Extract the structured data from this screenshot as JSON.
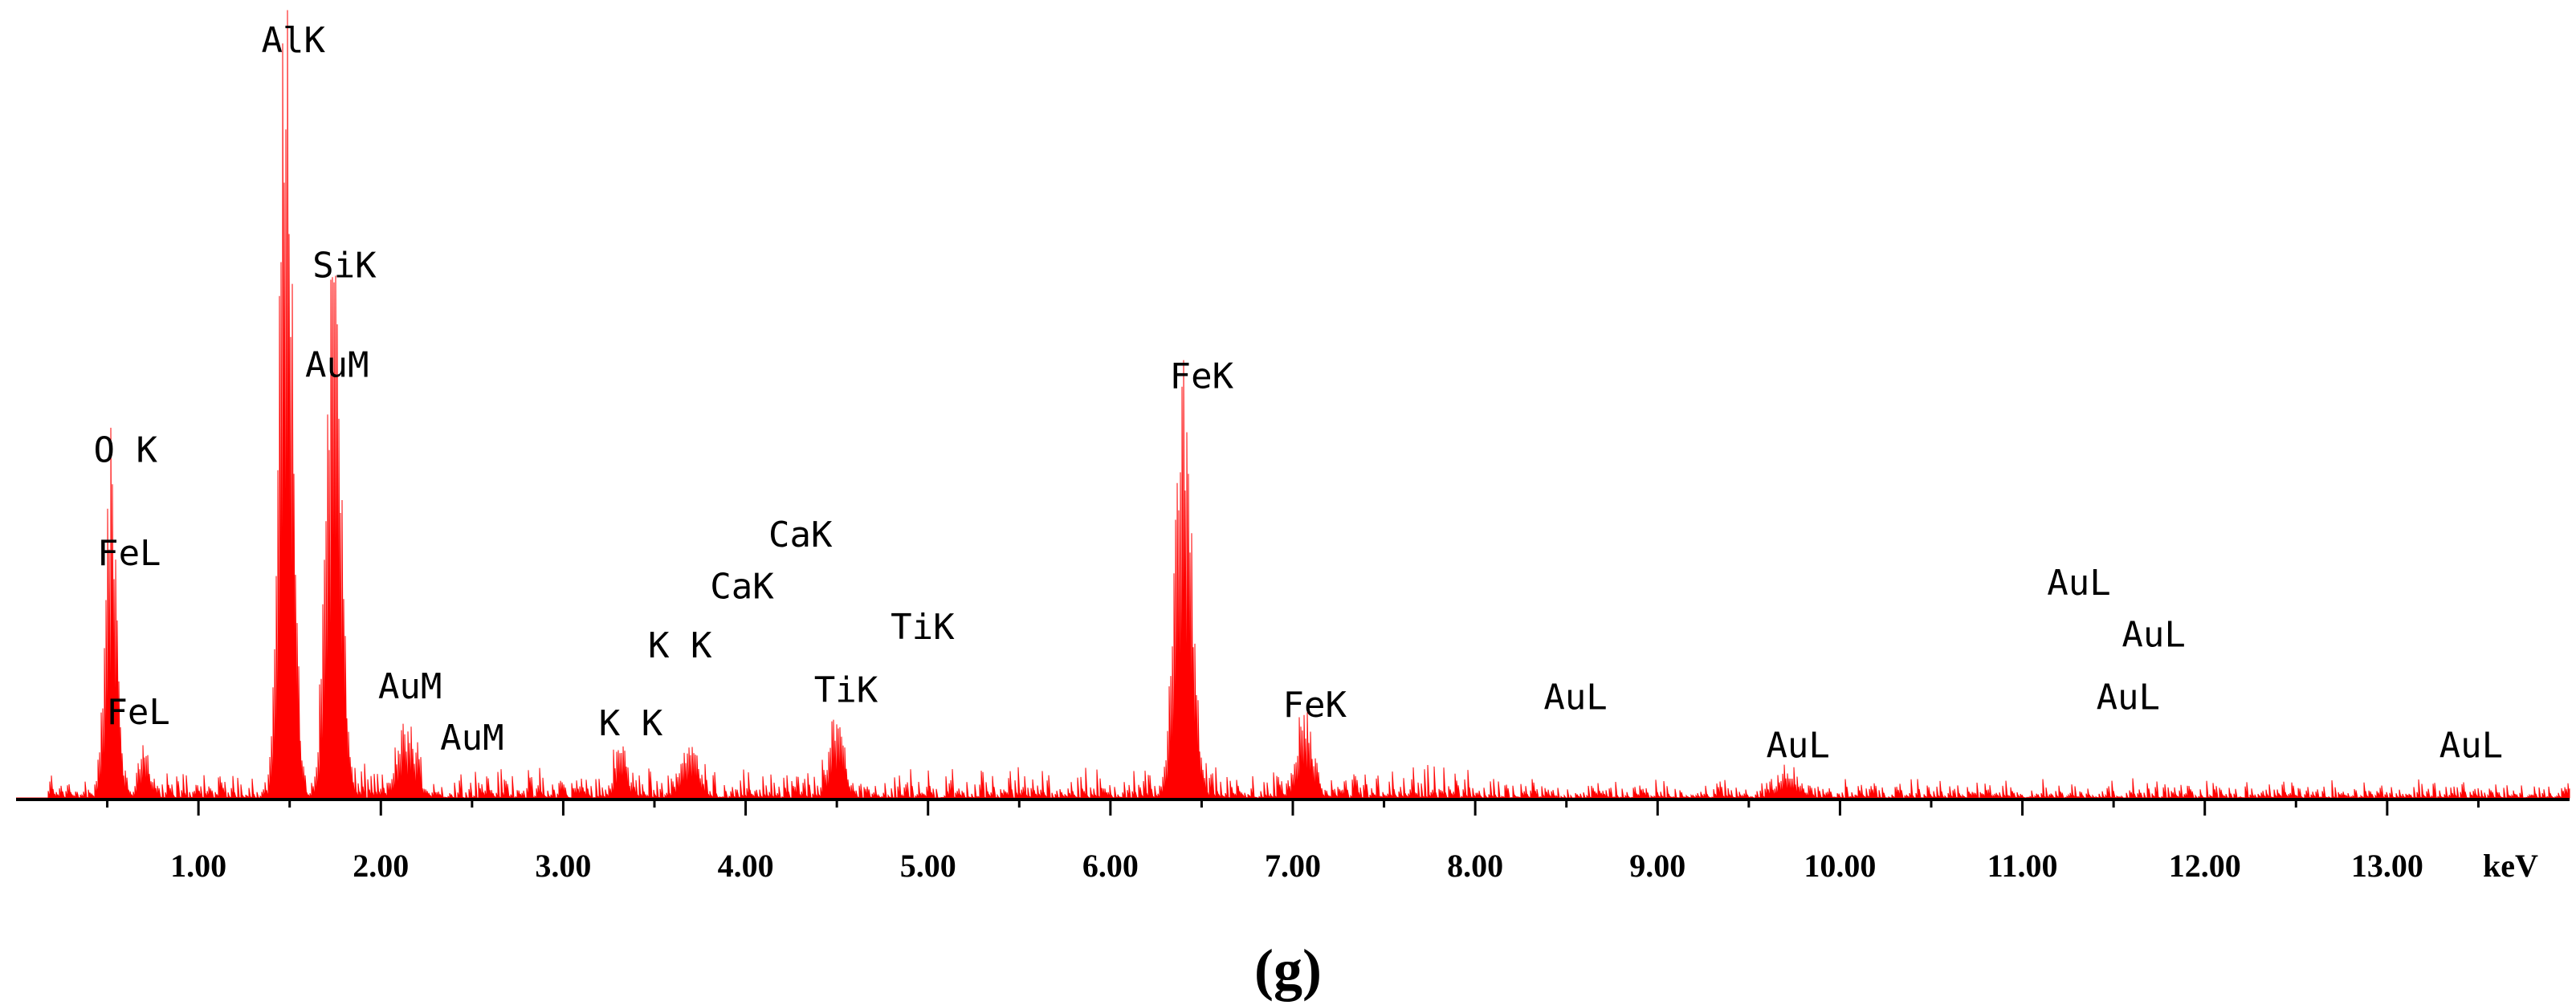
{
  "chart_data": {
    "type": "area",
    "xlabel": "keV",
    "caption": "(g)",
    "xlim": [
      0,
      14.0
    ],
    "ylim": [
      0,
      1.0
    ],
    "grid": false,
    "series_color": "#ff0000",
    "ticks": [
      {
        "value": 1.0,
        "label": "1.00"
      },
      {
        "value": 2.0,
        "label": "2.00"
      },
      {
        "value": 3.0,
        "label": "3.00"
      },
      {
        "value": 4.0,
        "label": "4.00"
      },
      {
        "value": 5.0,
        "label": "5.00"
      },
      {
        "value": 6.0,
        "label": "6.00"
      },
      {
        "value": 7.0,
        "label": "7.00"
      },
      {
        "value": 8.0,
        "label": "8.00"
      },
      {
        "value": 9.0,
        "label": "9.00"
      },
      {
        "value": 10.0,
        "label": "10.00"
      },
      {
        "value": 11.0,
        "label": "11.00"
      },
      {
        "value": 12.0,
        "label": "12.00"
      },
      {
        "value": 13.0,
        "label": "13.00"
      }
    ],
    "peaks": [
      {
        "energy": 0.52,
        "height": 0.425,
        "width": 0.03
      },
      {
        "energy": 0.7,
        "height": 0.05,
        "width": 0.03
      },
      {
        "energy": 1.48,
        "height": 1.0,
        "width": 0.035
      },
      {
        "energy": 1.74,
        "height": 0.68,
        "width": 0.04
      },
      {
        "energy": 2.14,
        "height": 0.075,
        "width": 0.05
      },
      {
        "energy": 3.31,
        "height": 0.06,
        "width": 0.03
      },
      {
        "energy": 3.69,
        "height": 0.055,
        "width": 0.05
      },
      {
        "energy": 4.5,
        "height": 0.1,
        "width": 0.035
      },
      {
        "energy": 6.4,
        "height": 0.52,
        "width": 0.045
      },
      {
        "energy": 7.06,
        "height": 0.09,
        "width": 0.04
      },
      {
        "energy": 9.71,
        "height": 0.025,
        "width": 0.05
      }
    ],
    "noise_level": 0.022,
    "annotations": [
      {
        "text": "AlK",
        "energy": 1.52,
        "level": 1.01
      },
      {
        "text": "SiK",
        "energy": 1.8,
        "level": 0.705
      },
      {
        "text": "AuM",
        "energy": 1.76,
        "level": 0.57
      },
      {
        "text": "O K",
        "energy": 0.6,
        "level": 0.455
      },
      {
        "text": "FeL",
        "energy": 0.62,
        "level": 0.315
      },
      {
        "text": "FeL",
        "energy": 0.67,
        "level": 0.1
      },
      {
        "text": "AuM",
        "energy": 2.16,
        "level": 0.135
      },
      {
        "text": "AuM",
        "energy": 2.5,
        "level": 0.065
      },
      {
        "text": "K K",
        "energy": 3.37,
        "level": 0.085
      },
      {
        "text": "K K",
        "energy": 3.64,
        "level": 0.19
      },
      {
        "text": "CaK",
        "energy": 3.98,
        "level": 0.27
      },
      {
        "text": "CaK",
        "energy": 4.3,
        "level": 0.34
      },
      {
        "text": "TiK",
        "energy": 4.55,
        "level": 0.13
      },
      {
        "text": "TiK",
        "energy": 4.97,
        "level": 0.215
      },
      {
        "text": "FeK",
        "energy": 6.5,
        "level": 0.555
      },
      {
        "text": "FeK",
        "energy": 7.12,
        "level": 0.11
      },
      {
        "text": "AuL",
        "energy": 8.55,
        "level": 0.12
      },
      {
        "text": "AuL",
        "energy": 9.77,
        "level": 0.055
      },
      {
        "text": "AuL",
        "energy": 11.31,
        "level": 0.275
      },
      {
        "text": "AuL",
        "energy": 11.72,
        "level": 0.205
      },
      {
        "text": "AuL",
        "energy": 11.58,
        "level": 0.12
      },
      {
        "text": "AuL",
        "energy": 13.46,
        "level": 0.055
      }
    ]
  }
}
